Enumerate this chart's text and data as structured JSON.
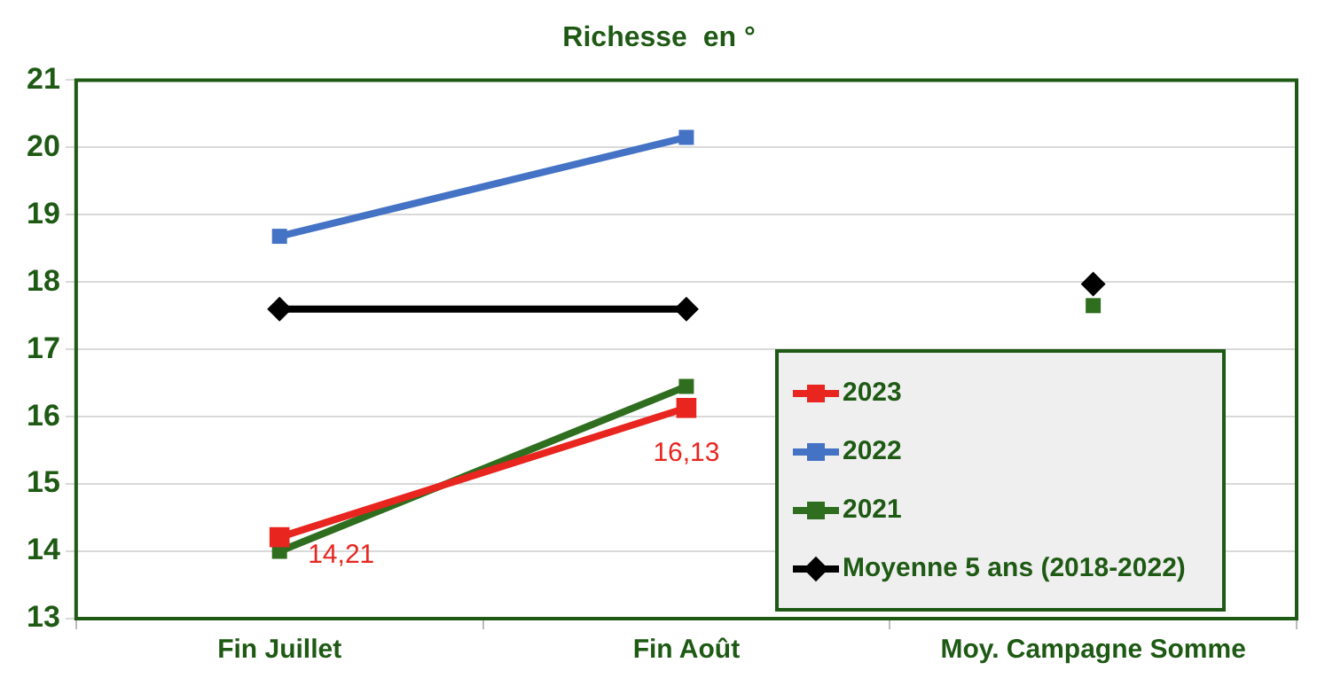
{
  "chart_data": {
    "type": "line",
    "title": "Richesse  en °",
    "categories": [
      "Fin Juillet",
      "Fin Août",
      "Moy. Campagne Somme"
    ],
    "series": [
      {
        "name": "2023",
        "color": "#e8251f",
        "marker": "square",
        "values": [
          14.21,
          16.13,
          null
        ],
        "value_labels": [
          "14,21",
          "16,13",
          null
        ]
      },
      {
        "name": "2022",
        "color": "#4472c4",
        "marker": "square",
        "values": [
          18.68,
          20.15,
          null
        ]
      },
      {
        "name": "2021",
        "color": "#2e6e1e",
        "marker": "square",
        "values": [
          14.0,
          16.45,
          null
        ]
      },
      {
        "name": "Moyenne  5 ans (2018-2022)",
        "color": "#000000",
        "marker": "diamond",
        "values": [
          17.6,
          17.6,
          null
        ]
      },
      {
        "type": "scatter",
        "color": "#2e6e1e",
        "marker": "square",
        "x": [
          "Moy. Campagne Somme"
        ],
        "values": [
          17.65
        ]
      },
      {
        "type": "scatter",
        "color": "#000000",
        "marker": "diamond",
        "x": [
          "Moy. Campagne Somme"
        ],
        "values": [
          17.97
        ]
      }
    ],
    "ylim": [
      13,
      21
    ],
    "yticks": [
      13,
      14,
      15,
      16,
      17,
      18,
      19,
      20,
      21
    ],
    "grid": "y",
    "legend": "bottom right"
  }
}
